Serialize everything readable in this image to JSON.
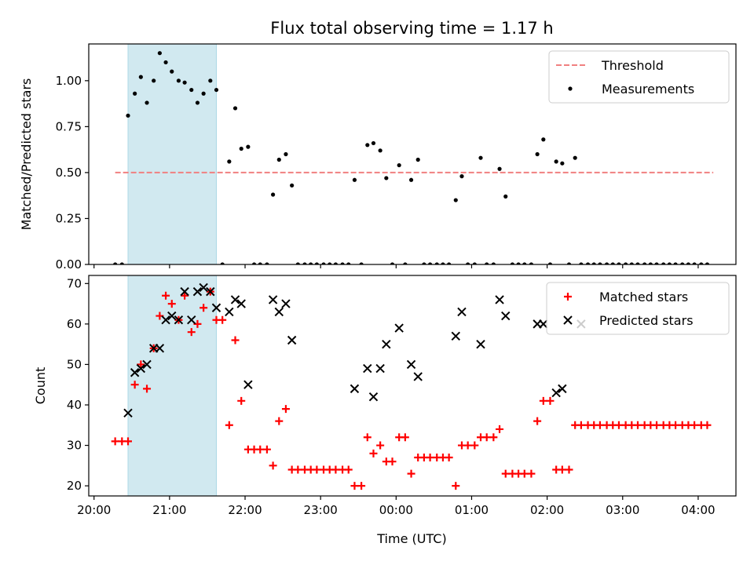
{
  "chart_data": {
    "title": "Flux total observing time = 1.17 h",
    "xlabel": "Time (UTC)",
    "x_ticks": [
      "20:00",
      "21:00",
      "22:00",
      "23:00",
      "00:00",
      "01:00",
      "02:00",
      "03:00",
      "04:00"
    ],
    "x_tick_hours": [
      0,
      1,
      2,
      3,
      4,
      5,
      6,
      7,
      8
    ],
    "x_unit": "hours since 20:00 UTC",
    "xlim": [
      -0.07,
      8.5
    ],
    "observing_window": {
      "start": 0.45,
      "end": 1.62,
      "color": "#d1e9f0"
    },
    "panels": [
      {
        "type": "scatter",
        "ylabel": "Matched/Predicted stars",
        "ylim": [
          0,
          1.2
        ],
        "yticks": [
          "0.00",
          "0.25",
          "0.50",
          "0.75",
          "1.00"
        ],
        "ytick_values": [
          0,
          0.25,
          0.5,
          0.75,
          1.0
        ],
        "legend_position": "top-right",
        "threshold": {
          "name": "Threshold",
          "value": 0.5,
          "x_range": [
            0.28,
            8.2
          ],
          "color": "#f08080"
        },
        "series": [
          {
            "name": "Measurements",
            "marker": "dot",
            "color": "#000000",
            "points": [
              [
                0.28,
                0
              ],
              [
                0.37,
                0
              ],
              [
                0.45,
                0.81
              ],
              [
                0.54,
                0.93
              ],
              [
                0.62,
                1.02
              ],
              [
                0.7,
                0.88
              ],
              [
                0.79,
                1.0
              ],
              [
                0.87,
                1.15
              ],
              [
                0.95,
                1.1
              ],
              [
                1.03,
                1.05
              ],
              [
                1.12,
                1.0
              ],
              [
                1.2,
                0.99
              ],
              [
                1.29,
                0.95
              ],
              [
                1.37,
                0.88
              ],
              [
                1.45,
                0.93
              ],
              [
                1.54,
                1.0
              ],
              [
                1.62,
                0.95
              ],
              [
                1.7,
                0
              ],
              [
                1.79,
                0.56
              ],
              [
                1.87,
                0.85
              ],
              [
                1.95,
                0.63
              ],
              [
                2.04,
                0.64
              ],
              [
                2.12,
                0
              ],
              [
                2.2,
                0
              ],
              [
                2.29,
                0
              ],
              [
                2.37,
                0.38
              ],
              [
                2.45,
                0.57
              ],
              [
                2.54,
                0.6
              ],
              [
                2.62,
                0.43
              ],
              [
                2.7,
                0
              ],
              [
                2.79,
                0
              ],
              [
                2.87,
                0
              ],
              [
                2.95,
                0
              ],
              [
                3.04,
                0
              ],
              [
                3.12,
                0
              ],
              [
                3.2,
                0
              ],
              [
                3.29,
                0
              ],
              [
                3.37,
                0
              ],
              [
                3.45,
                0.46
              ],
              [
                3.54,
                0
              ],
              [
                3.62,
                0.65
              ],
              [
                3.7,
                0.66
              ],
              [
                3.79,
                0.62
              ],
              [
                3.87,
                0.47
              ],
              [
                3.95,
                0
              ],
              [
                4.04,
                0.54
              ],
              [
                4.12,
                0
              ],
              [
                4.2,
                0.46
              ],
              [
                4.29,
                0.57
              ],
              [
                4.37,
                0
              ],
              [
                4.45,
                0
              ],
              [
                4.54,
                0
              ],
              [
                4.62,
                0
              ],
              [
                4.7,
                0
              ],
              [
                4.79,
                0.35
              ],
              [
                4.87,
                0.48
              ],
              [
                4.95,
                0
              ],
              [
                5.04,
                0
              ],
              [
                5.12,
                0.58
              ],
              [
                5.2,
                0
              ],
              [
                5.29,
                0
              ],
              [
                5.37,
                0.52
              ],
              [
                5.45,
                0.37
              ],
              [
                5.54,
                0
              ],
              [
                5.62,
                0
              ],
              [
                5.7,
                0
              ],
              [
                5.79,
                0
              ],
              [
                5.87,
                0.6
              ],
              [
                5.95,
                0.68
              ],
              [
                6.04,
                0
              ],
              [
                6.12,
                0.56
              ],
              [
                6.2,
                0.55
              ],
              [
                6.29,
                0
              ],
              [
                6.37,
                0.58
              ],
              [
                6.45,
                0
              ],
              [
                6.54,
                0
              ],
              [
                6.62,
                0
              ],
              [
                6.7,
                0
              ],
              [
                6.79,
                0
              ],
              [
                6.87,
                0
              ],
              [
                6.95,
                0
              ],
              [
                7.04,
                0
              ],
              [
                7.12,
                0
              ],
              [
                7.2,
                0
              ],
              [
                7.29,
                0
              ],
              [
                7.37,
                0
              ],
              [
                7.45,
                0
              ],
              [
                7.54,
                0
              ],
              [
                7.62,
                0
              ],
              [
                7.7,
                0
              ],
              [
                7.79,
                0
              ],
              [
                7.87,
                0
              ],
              [
                7.95,
                0
              ],
              [
                8.04,
                0
              ],
              [
                8.12,
                0
              ]
            ]
          }
        ]
      },
      {
        "type": "scatter",
        "ylabel": "Count",
        "ylim": [
          17.5,
          72
        ],
        "yticks": [
          "20",
          "30",
          "40",
          "50",
          "60",
          "70"
        ],
        "ytick_values": [
          20,
          30,
          40,
          50,
          60,
          70
        ],
        "legend_position": "top-right",
        "series": [
          {
            "name": "Matched stars",
            "marker": "plus",
            "color": "#ff0000",
            "points": [
              [
                0.28,
                31
              ],
              [
                0.37,
                31
              ],
              [
                0.45,
                31
              ],
              [
                0.54,
                45
              ],
              [
                0.62,
                50
              ],
              [
                0.7,
                44
              ],
              [
                0.79,
                54
              ],
              [
                0.87,
                62
              ],
              [
                0.95,
                67
              ],
              [
                1.03,
                65
              ],
              [
                1.12,
                61
              ],
              [
                1.2,
                67
              ],
              [
                1.29,
                58
              ],
              [
                1.37,
                60
              ],
              [
                1.45,
                64
              ],
              [
                1.54,
                68
              ],
              [
                1.62,
                61
              ],
              [
                1.7,
                61
              ],
              [
                1.79,
                35
              ],
              [
                1.87,
                56
              ],
              [
                1.95,
                41
              ],
              [
                2.04,
                29
              ],
              [
                2.12,
                29
              ],
              [
                2.2,
                29
              ],
              [
                2.29,
                29
              ],
              [
                2.37,
                25
              ],
              [
                2.45,
                36
              ],
              [
                2.54,
                39
              ],
              [
                2.62,
                24
              ],
              [
                2.7,
                24
              ],
              [
                2.79,
                24
              ],
              [
                2.87,
                24
              ],
              [
                2.95,
                24
              ],
              [
                3.04,
                24
              ],
              [
                3.12,
                24
              ],
              [
                3.2,
                24
              ],
              [
                3.29,
                24
              ],
              [
                3.37,
                24
              ],
              [
                3.45,
                20
              ],
              [
                3.54,
                20
              ],
              [
                3.62,
                32
              ],
              [
                3.7,
                28
              ],
              [
                3.79,
                30
              ],
              [
                3.87,
                26
              ],
              [
                3.95,
                26
              ],
              [
                4.04,
                32
              ],
              [
                4.12,
                32
              ],
              [
                4.2,
                23
              ],
              [
                4.29,
                27
              ],
              [
                4.37,
                27
              ],
              [
                4.45,
                27
              ],
              [
                4.54,
                27
              ],
              [
                4.62,
                27
              ],
              [
                4.7,
                27
              ],
              [
                4.79,
                20
              ],
              [
                4.87,
                30
              ],
              [
                4.95,
                30
              ],
              [
                5.04,
                30
              ],
              [
                5.12,
                32
              ],
              [
                5.2,
                32
              ],
              [
                5.29,
                32
              ],
              [
                5.37,
                34
              ],
              [
                5.45,
                23
              ],
              [
                5.54,
                23
              ],
              [
                5.62,
                23
              ],
              [
                5.7,
                23
              ],
              [
                5.79,
                23
              ],
              [
                5.87,
                36
              ],
              [
                5.95,
                41
              ],
              [
                6.04,
                41
              ],
              [
                6.12,
                24
              ],
              [
                6.2,
                24
              ],
              [
                6.29,
                24
              ],
              [
                6.37,
                35
              ],
              [
                6.45,
                35
              ],
              [
                6.54,
                35
              ],
              [
                6.62,
                35
              ],
              [
                6.7,
                35
              ],
              [
                6.79,
                35
              ],
              [
                6.87,
                35
              ],
              [
                6.95,
                35
              ],
              [
                7.04,
                35
              ],
              [
                7.12,
                35
              ],
              [
                7.2,
                35
              ],
              [
                7.29,
                35
              ],
              [
                7.37,
                35
              ],
              [
                7.45,
                35
              ],
              [
                7.54,
                35
              ],
              [
                7.62,
                35
              ],
              [
                7.7,
                35
              ],
              [
                7.79,
                35
              ],
              [
                7.87,
                35
              ],
              [
                7.95,
                35
              ],
              [
                8.04,
                35
              ],
              [
                8.12,
                35
              ]
            ]
          },
          {
            "name": "Predicted stars",
            "marker": "cross",
            "color": "#000000",
            "points": [
              [
                0.45,
                38
              ],
              [
                0.54,
                48
              ],
              [
                0.62,
                49
              ],
              [
                0.7,
                50
              ],
              [
                0.79,
                54
              ],
              [
                0.87,
                54
              ],
              [
                0.95,
                61
              ],
              [
                1.03,
                62
              ],
              [
                1.12,
                61
              ],
              [
                1.2,
                68
              ],
              [
                1.29,
                61
              ],
              [
                1.37,
                68
              ],
              [
                1.45,
                69
              ],
              [
                1.54,
                68
              ],
              [
                1.62,
                64
              ],
              [
                1.79,
                63
              ],
              [
                1.87,
                66
              ],
              [
                1.95,
                65
              ],
              [
                2.04,
                45
              ],
              [
                2.37,
                66
              ],
              [
                2.45,
                63
              ],
              [
                2.54,
                65
              ],
              [
                2.62,
                56
              ],
              [
                3.45,
                44
              ],
              [
                3.62,
                49
              ],
              [
                3.7,
                42
              ],
              [
                3.79,
                49
              ],
              [
                3.87,
                55
              ],
              [
                4.04,
                59
              ],
              [
                4.2,
                50
              ],
              [
                4.29,
                47
              ],
              [
                4.79,
                57
              ],
              [
                4.87,
                63
              ],
              [
                5.12,
                55
              ],
              [
                5.37,
                66
              ],
              [
                5.45,
                62
              ],
              [
                5.87,
                60
              ],
              [
                5.95,
                60
              ],
              [
                6.12,
                43
              ],
              [
                6.2,
                44
              ],
              [
                6.45,
                60
              ]
            ]
          }
        ]
      }
    ]
  }
}
